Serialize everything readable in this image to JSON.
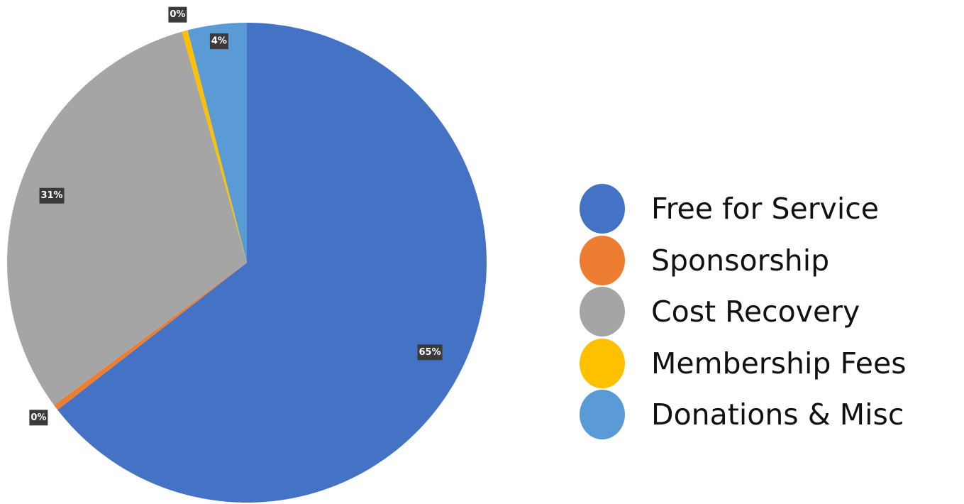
{
  "chart_data": {
    "type": "pie",
    "title": "",
    "slices": [
      {
        "label": "Free for Service",
        "value": 65,
        "display": "65%",
        "color": "#4472c4"
      },
      {
        "label": "Sponsorship",
        "value": 0.4,
        "display": "0%",
        "color": "#ed7d31"
      },
      {
        "label": "Cost Recovery",
        "value": 31,
        "display": "31%",
        "color": "#a5a5a5"
      },
      {
        "label": "Membership Fees",
        "value": 0.4,
        "display": "0%",
        "color": "#ffc000"
      },
      {
        "label": "Donations & Misc",
        "value": 4,
        "display": "4%",
        "color": "#5b9bd5"
      }
    ],
    "legend_position": "right"
  }
}
